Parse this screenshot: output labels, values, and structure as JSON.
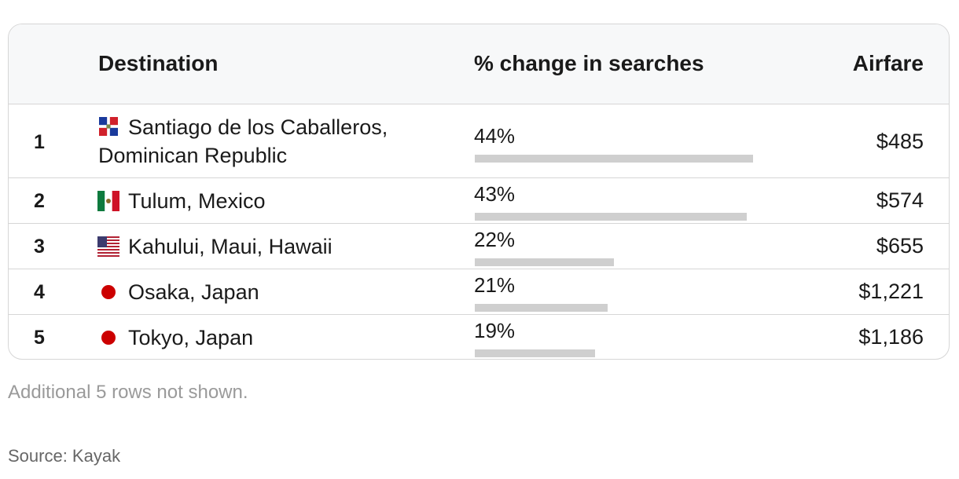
{
  "chart_data": {
    "type": "table",
    "columns": [
      "",
      "Destination",
      "% change in searches",
      "Airfare"
    ],
    "rows": [
      {
        "rank": "1",
        "flag": "dominican-republic-flag-icon",
        "destination_line1": "Santiago de los Caballeros,",
        "destination_line2": "Dominican Republic",
        "change_label": "44%",
        "change_value": 44,
        "airfare": "$485"
      },
      {
        "rank": "2",
        "flag": "mexico-flag-icon",
        "destination_line1": "Tulum, Mexico",
        "destination_line2": "",
        "change_label": "43%",
        "change_value": 43,
        "airfare": "$574"
      },
      {
        "rank": "3",
        "flag": "usa-flag-icon",
        "destination_line1": "Kahului, Maui, Hawaii",
        "destination_line2": "",
        "change_label": "22%",
        "change_value": 22,
        "airfare": "$655"
      },
      {
        "rank": "4",
        "flag": "japan-flag-icon",
        "destination_line1": "Osaka, Japan",
        "destination_line2": "",
        "change_label": "21%",
        "change_value": 21,
        "airfare": "$1,221"
      },
      {
        "rank": "5",
        "flag": "japan-flag-icon",
        "destination_line1": "Tokyo, Japan",
        "destination_line2": "",
        "change_label": "19%",
        "change_value": 19,
        "airfare": "$1,186"
      }
    ],
    "bar_color": "#cfcfcf"
  },
  "footnote": "Additional 5 rows not shown.",
  "source": "Source: Kayak"
}
